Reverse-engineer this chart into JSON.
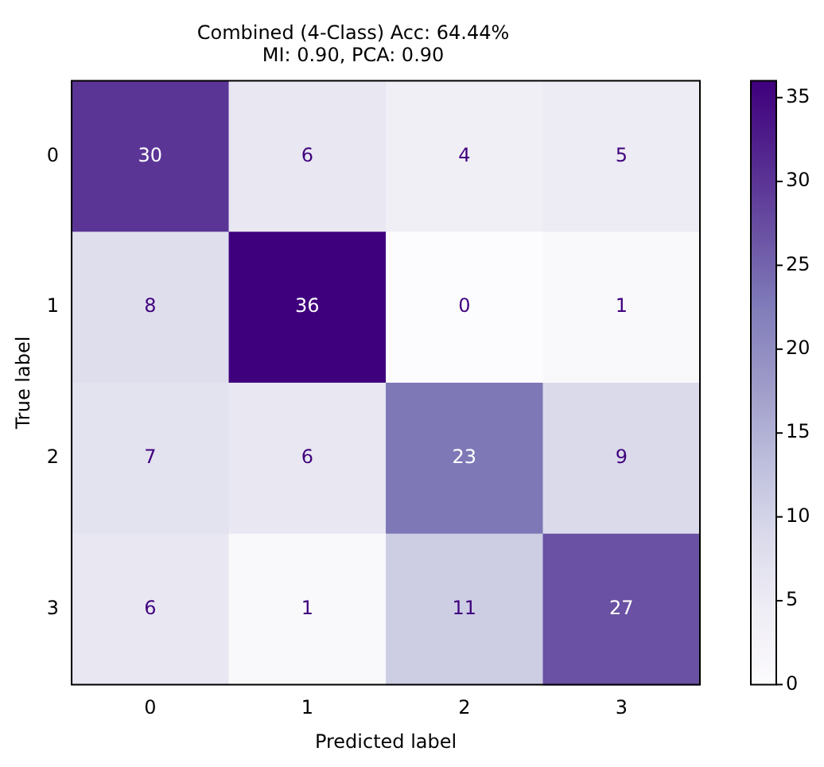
{
  "chart_data": {
    "type": "heatmap",
    "title": "Combined (4-Class) Acc: 64.44%\nMI: 0.90, PCA: 0.90",
    "xlabel": "Predicted label",
    "ylabel": "True label",
    "categories": [
      "0",
      "1",
      "2",
      "3"
    ],
    "y_categories": [
      "0",
      "1",
      "2",
      "3"
    ],
    "cells": [
      [
        30,
        6,
        4,
        5
      ],
      [
        8,
        36,
        0,
        1
      ],
      [
        7,
        6,
        23,
        9
      ],
      [
        6,
        1,
        11,
        27
      ]
    ],
    "data_labels": true,
    "clim": [
      0,
      36
    ],
    "cticks": [
      0,
      5,
      10,
      15,
      20,
      25,
      30,
      35
    ]
  }
}
